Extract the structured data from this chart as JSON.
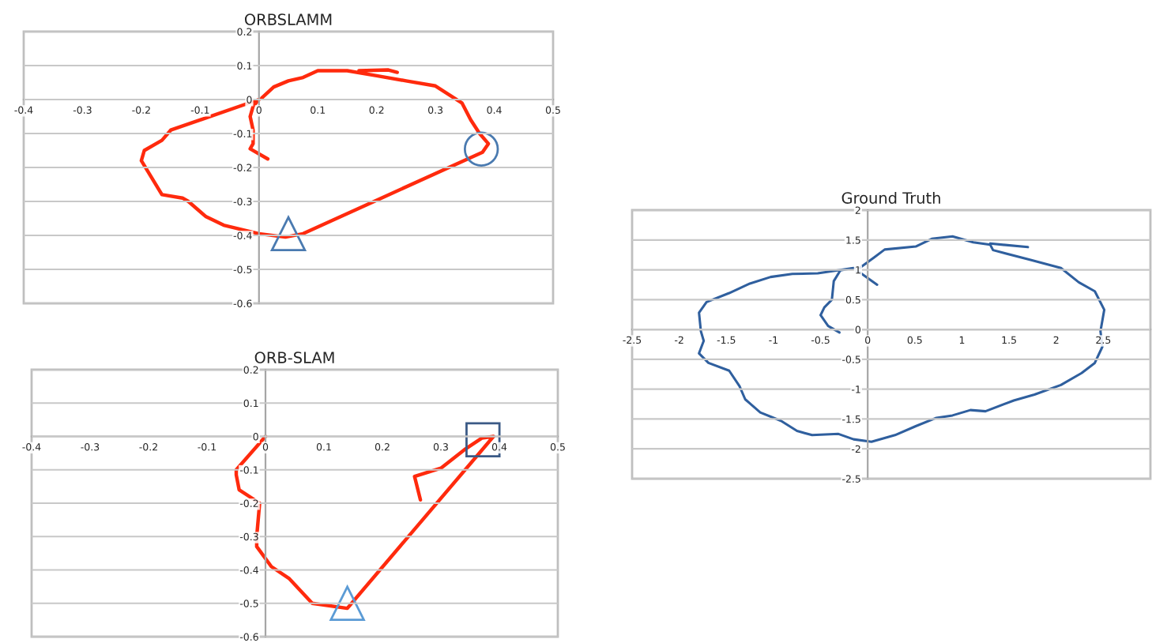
{
  "chart_data": [
    {
      "type": "line",
      "title": "ORBSLAMM",
      "xlim": [
        -0.4,
        0.5
      ],
      "ylim": [
        -0.6,
        0.2
      ],
      "xticks": [
        -0.4,
        -0.3,
        -0.2,
        -0.1,
        0,
        0.1,
        0.2,
        0.3,
        0.4,
        0.5
      ],
      "yticks": [
        -0.6,
        -0.5,
        -0.4,
        -0.3,
        -0.2,
        -0.1,
        0,
        0.1,
        0.2
      ],
      "grid": "y",
      "legend": false,
      "series": [
        {
          "type": "line",
          "color": "#ff2a0d",
          "x": [
            0.015,
            -0.015,
            -0.01,
            -0.01,
            -0.015,
            -0.01,
            0,
            -0.15,
            -0.165,
            -0.195,
            -0.2,
            -0.165,
            -0.13,
            -0.12,
            -0.09,
            -0.06,
            0,
            0.045,
            0.075,
            0.38,
            0.39,
            0.375,
            0.36,
            0.345,
            0.3,
            0.25,
            0.2,
            0.15,
            0.1,
            0.075,
            0.05,
            0.025,
            0.005,
            null,
            0.17,
            0.22,
            0.235
          ],
          "values": [
            -0.175,
            -0.145,
            -0.13,
            -0.09,
            -0.05,
            -0.02,
            0,
            -0.09,
            -0.12,
            -0.15,
            -0.18,
            -0.28,
            -0.29,
            -0.3,
            -0.345,
            -0.37,
            -0.395,
            -0.405,
            -0.395,
            -0.155,
            -0.13,
            -0.1,
            -0.06,
            -0.01,
            0.04,
            0.055,
            0.07,
            0.085,
            0.085,
            0.065,
            0.055,
            0.037,
            0.005,
            null,
            0.085,
            0.087,
            0.08
          ]
        },
        {
          "type": "scatter",
          "marker": "circle",
          "color": "#4a7ab0",
          "x": [
            0.378
          ],
          "values": [
            -0.146
          ]
        },
        {
          "type": "scatter",
          "marker": "triangle",
          "color": "#4a7ab0",
          "x": [
            0.05
          ],
          "values": [
            -0.395
          ]
        }
      ]
    },
    {
      "type": "line",
      "title": "ORB-SLAM",
      "xlim": [
        -0.4,
        0.5
      ],
      "ylim": [
        -0.6,
        0.2
      ],
      "xticks": [
        -0.4,
        -0.3,
        -0.2,
        -0.1,
        0,
        0.1,
        0.2,
        0.3,
        0.4,
        0.5
      ],
      "yticks": [
        -0.6,
        -0.5,
        -0.4,
        -0.3,
        -0.2,
        -0.1,
        0,
        0.1,
        0.2
      ],
      "grid": "y",
      "legend": false,
      "series": [
        {
          "type": "line",
          "color": "#ff2a0d",
          "x": [
            0,
            -0.05,
            -0.05,
            -0.045,
            -0.01,
            -0.015,
            -0.015,
            0.01,
            0.04,
            0.08,
            0.14,
            0.39,
            0.37,
            0.34,
            0.3,
            0.255,
            0.265
          ],
          "values": [
            0,
            -0.1,
            -0.115,
            -0.16,
            -0.2,
            -0.3,
            -0.33,
            -0.39,
            -0.425,
            -0.5,
            -0.515,
            0,
            -0.005,
            -0.04,
            -0.095,
            -0.12,
            -0.19
          ]
        },
        {
          "type": "scatter",
          "marker": "square",
          "color": "#3b5a86",
          "x": [
            0.372
          ],
          "values": [
            -0.01
          ]
        },
        {
          "type": "scatter",
          "marker": "triangle",
          "color": "#5b9bd5",
          "x": [
            0.14
          ],
          "values": [
            -0.5
          ]
        }
      ]
    },
    {
      "type": "line",
      "title": "Ground Truth",
      "xlim": [
        -2.5,
        3
      ],
      "ylim": [
        -2.5,
        2
      ],
      "xticks": [
        -2.5,
        -2,
        -1.5,
        -1,
        -0.5,
        0,
        0.5,
        1,
        1.5,
        2,
        2.5
      ],
      "yticks": [
        -2.5,
        -2,
        -1.5,
        -1,
        -0.5,
        0,
        0.5,
        1,
        1.5,
        2
      ],
      "grid": "y",
      "legend": false,
      "series": [
        {
          "type": "line",
          "color": "#2f5f9e",
          "x": [
            -0.3,
            -0.42,
            -0.5,
            -0.46,
            -0.38,
            -0.36,
            -0.29,
            -0.15,
            -0.12,
            0.07,
            0.18,
            0.51,
            0.68,
            0.9,
            1.12,
            1.3,
            1.33,
            1.72,
            2.05,
            2.24,
            2.41,
            2.51,
            2.47,
            2.49,
            2.41,
            2.27,
            2.05,
            1.77,
            1.55,
            1.25,
            1.09,
            0.9,
            0.73,
            0.51,
            0.29,
            0.04,
            -0.15,
            -0.31,
            -0.59,
            -0.75,
            -0.92,
            -1.14,
            -1.3,
            -1.36,
            -1.47,
            -1.69,
            -1.79,
            -1.74,
            -1.77,
            -1.79,
            -1.71,
            -1.47,
            -1.25,
            -1.03,
            -0.8,
            -0.53,
            -0.15,
            0.1,
            null,
            1.3,
            1.7
          ],
          "values": [
            -0.05,
            0.06,
            0.24,
            0.37,
            0.5,
            0.81,
            0.99,
            1.03,
            0.99,
            1.21,
            1.34,
            1.39,
            1.52,
            1.56,
            1.46,
            1.42,
            1.33,
            1.17,
            1.03,
            0.79,
            0.64,
            0.33,
            -0.03,
            -0.29,
            -0.56,
            -0.73,
            -0.93,
            -1.09,
            -1.19,
            -1.37,
            -1.35,
            -1.44,
            -1.48,
            -1.62,
            -1.77,
            -1.88,
            -1.84,
            -1.75,
            -1.77,
            -1.7,
            -1.53,
            -1.39,
            -1.17,
            -0.95,
            -0.69,
            -0.56,
            -0.4,
            -0.19,
            -0.03,
            0.28,
            0.46,
            0.61,
            0.77,
            0.88,
            0.93,
            0.94,
            1.03,
            0.75,
            null,
            1.44,
            1.38
          ]
        }
      ]
    }
  ]
}
